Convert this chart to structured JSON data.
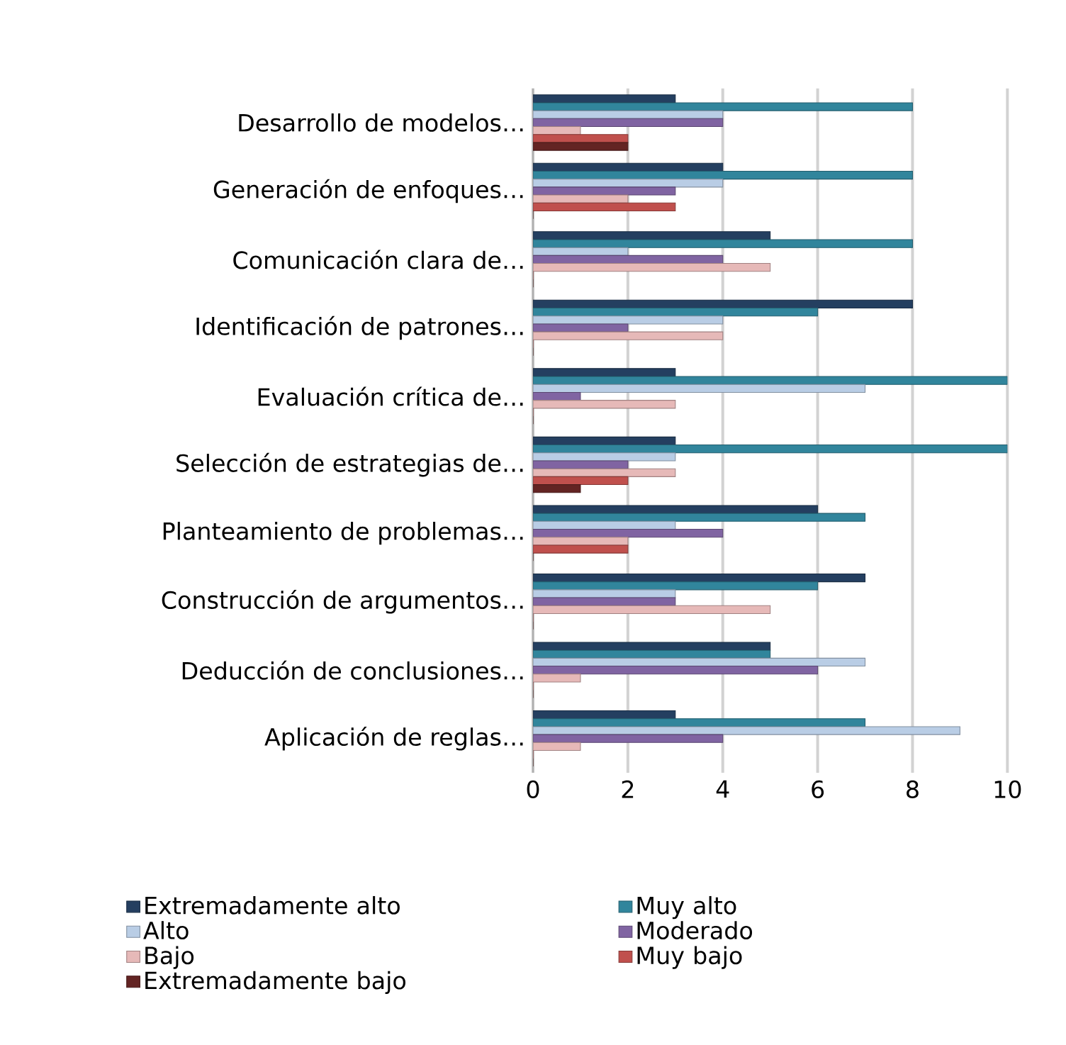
{
  "chart_data": {
    "type": "bar",
    "orientation": "horizontal",
    "categories": [
      "Desarrollo de modelos…",
      "Generación de enfoques…",
      "Comunicación clara de…",
      "Identificación de patrones…",
      "Evaluación crítica de…",
      "Selección de estrategias de…",
      "Planteamiento de problemas…",
      "Construcción de argumentos…",
      "Deducción de conclusiones…",
      "Aplicación de reglas…"
    ],
    "series": [
      {
        "name": "Extremadamente alto",
        "color": "#243f60",
        "values": [
          3,
          4,
          5,
          8,
          3,
          3,
          6,
          7,
          5,
          3
        ]
      },
      {
        "name": "Muy alto",
        "color": "#31859c",
        "values": [
          8,
          8,
          8,
          6,
          10,
          10,
          7,
          6,
          5,
          7
        ]
      },
      {
        "name": "Alto",
        "color": "#b9cde5",
        "values": [
          4,
          4,
          2,
          4,
          7,
          3,
          3,
          3,
          7,
          9
        ]
      },
      {
        "name": "Moderado",
        "color": "#8064a2",
        "values": [
          4,
          3,
          4,
          2,
          1,
          2,
          4,
          3,
          6,
          4
        ]
      },
      {
        "name": "Bajo",
        "color": "#e6b9b8",
        "values": [
          1,
          2,
          5,
          4,
          3,
          3,
          2,
          5,
          1,
          1
        ]
      },
      {
        "name": "Muy bajo",
        "color": "#c0504d",
        "values": [
          2,
          3,
          0,
          0,
          0,
          2,
          2,
          0,
          0,
          0
        ]
      },
      {
        "name": "Extremadamente bajo",
        "color": "#632423",
        "values": [
          2,
          0,
          0,
          0,
          0,
          1,
          0,
          0,
          0,
          0
        ]
      }
    ],
    "xlim": [
      0,
      10
    ],
    "xticks": [
      0,
      2,
      4,
      6,
      8,
      10
    ],
    "grid": "x",
    "legend": "bottom"
  }
}
